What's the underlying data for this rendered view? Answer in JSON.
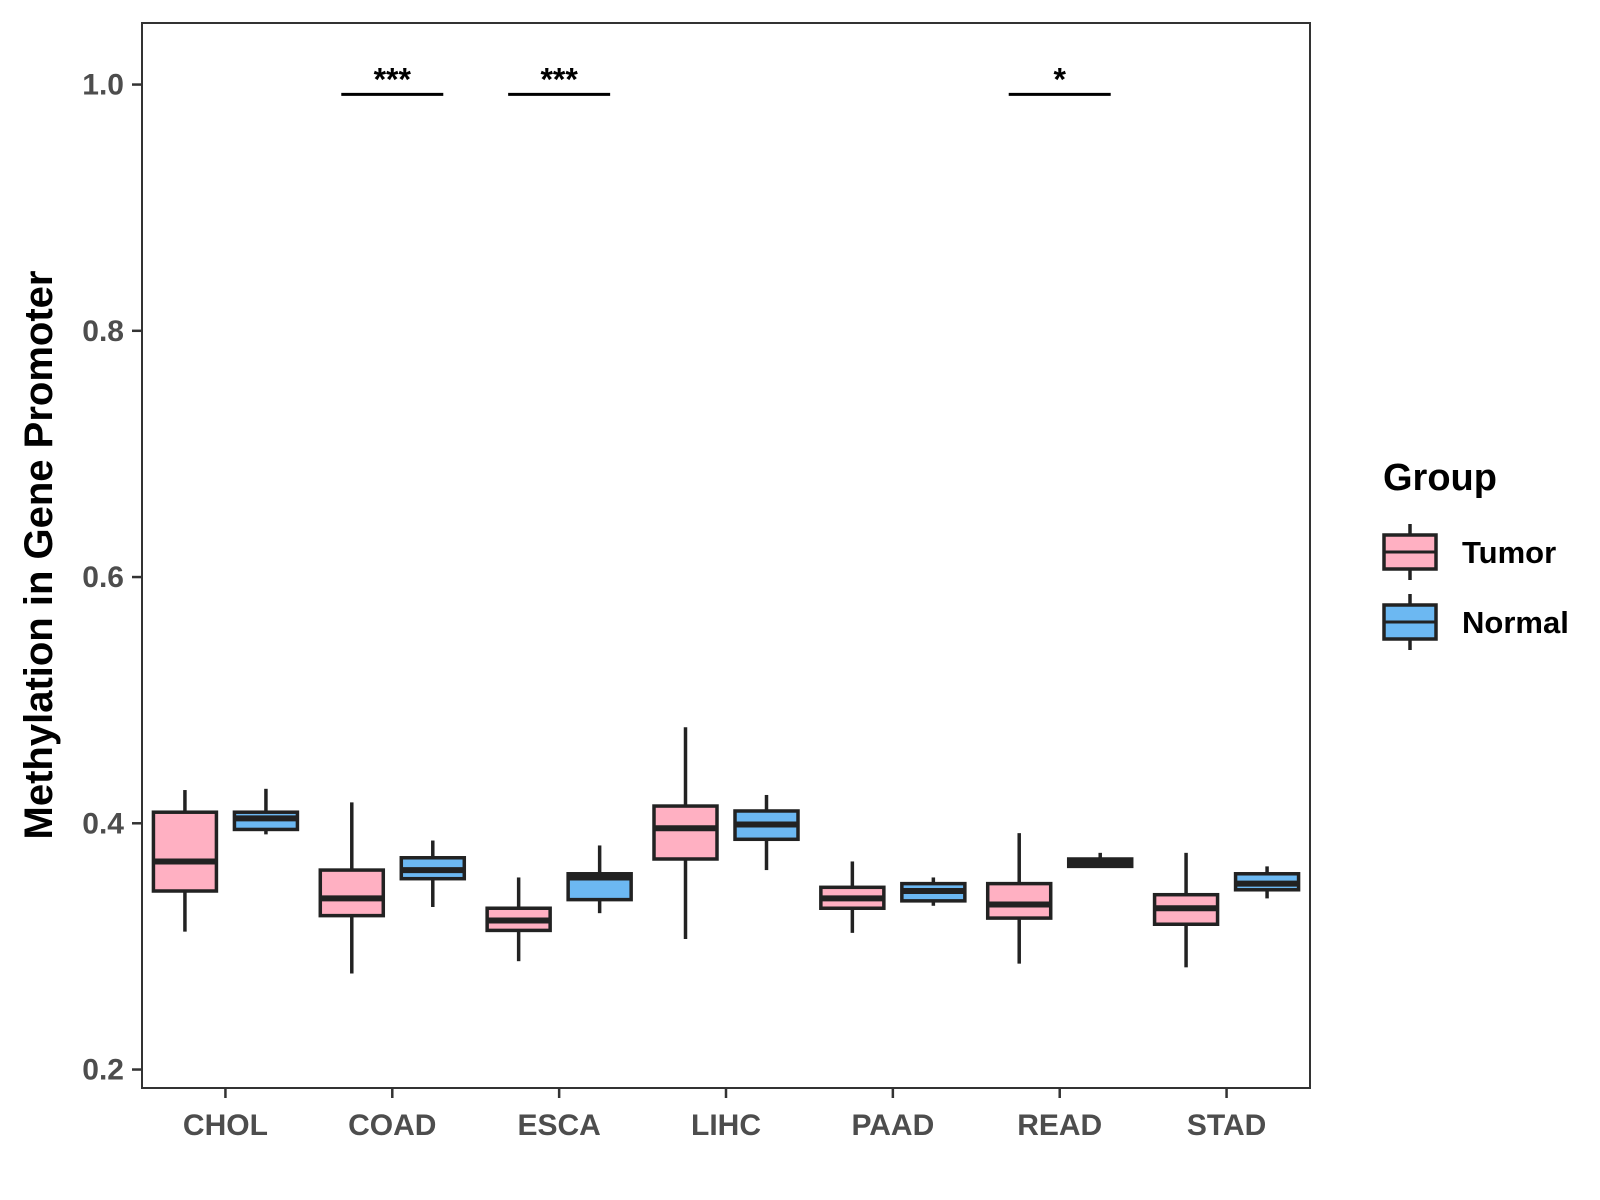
{
  "chart_data": {
    "type": "boxplot",
    "title": "",
    "xlabel": "",
    "ylabel": "Methylation in Gene Promoter",
    "ylim": [
      0.185,
      1.05
    ],
    "yticks": [
      0.2,
      0.4,
      0.6,
      0.8,
      1.0
    ],
    "ytick_labels": [
      "0.2",
      "0.4",
      "0.6",
      "0.8",
      "1.0"
    ],
    "categories": [
      "CHOL",
      "COAD",
      "ESCA",
      "LIHC",
      "PAAD",
      "READ",
      "STAD"
    ],
    "legend": {
      "title": "Group",
      "position": "right",
      "entries": [
        {
          "name": "Tumor",
          "color": "#FFB0C2"
        },
        {
          "name": "Normal",
          "color": "#6CB8F2"
        }
      ]
    },
    "series": [
      {
        "name": "Tumor",
        "color": "#FFB0C2",
        "boxes": [
          {
            "whislo": 0.312,
            "q1": 0.345,
            "med": 0.369,
            "q3": 0.409,
            "whishi": 0.427
          },
          {
            "whislo": 0.278,
            "q1": 0.325,
            "med": 0.339,
            "q3": 0.362,
            "whishi": 0.417
          },
          {
            "whislo": 0.288,
            "q1": 0.313,
            "med": 0.321,
            "q3": 0.331,
            "whishi": 0.356
          },
          {
            "whislo": 0.306,
            "q1": 0.371,
            "med": 0.396,
            "q3": 0.414,
            "whishi": 0.478
          },
          {
            "whislo": 0.311,
            "q1": 0.331,
            "med": 0.339,
            "q3": 0.348,
            "whishi": 0.369
          },
          {
            "whislo": 0.286,
            "q1": 0.323,
            "med": 0.334,
            "q3": 0.351,
            "whishi": 0.392
          },
          {
            "whislo": 0.283,
            "q1": 0.318,
            "med": 0.331,
            "q3": 0.342,
            "whishi": 0.376
          }
        ]
      },
      {
        "name": "Normal",
        "color": "#6CB8F2",
        "boxes": [
          {
            "whislo": 0.391,
            "q1": 0.395,
            "med": 0.404,
            "q3": 0.409,
            "whishi": 0.428
          },
          {
            "whislo": 0.332,
            "q1": 0.355,
            "med": 0.362,
            "q3": 0.372,
            "whishi": 0.386
          },
          {
            "whislo": 0.327,
            "q1": 0.338,
            "med": 0.356,
            "q3": 0.359,
            "whishi": 0.382
          },
          {
            "whislo": 0.362,
            "q1": 0.387,
            "med": 0.399,
            "q3": 0.41,
            "whishi": 0.423
          },
          {
            "whislo": 0.333,
            "q1": 0.337,
            "med": 0.345,
            "q3": 0.351,
            "whishi": 0.356
          },
          {
            "whislo": 0.364,
            "q1": 0.365,
            "med": 0.368,
            "q3": 0.371,
            "whishi": 0.376
          },
          {
            "whislo": 0.339,
            "q1": 0.346,
            "med": 0.351,
            "q3": 0.359,
            "whishi": 0.365
          }
        ]
      }
    ],
    "significance": [
      {
        "category": "COAD",
        "label": "***",
        "y": 0.992
      },
      {
        "category": "ESCA",
        "label": "***",
        "y": 0.992
      },
      {
        "category": "READ",
        "label": "*",
        "y": 0.992
      }
    ],
    "grid": false
  }
}
